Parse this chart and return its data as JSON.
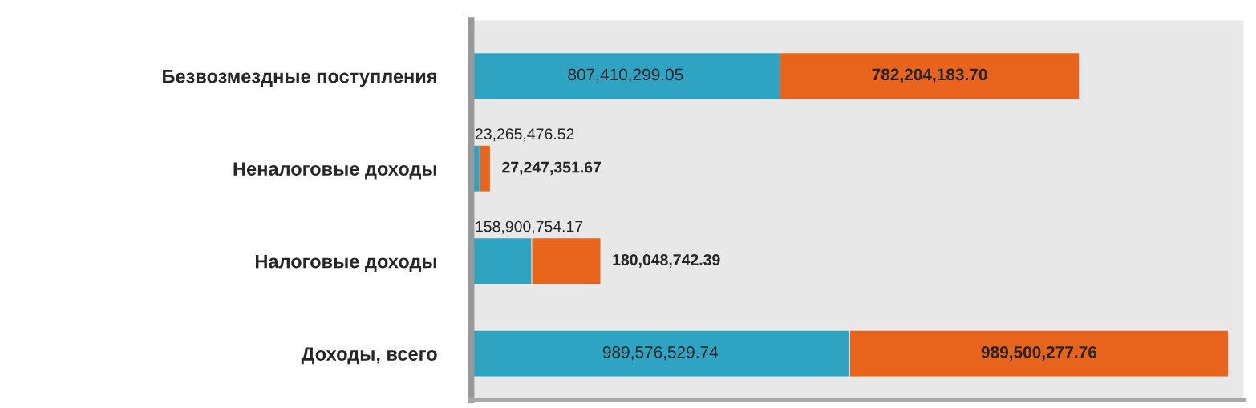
{
  "chart_data": {
    "type": "bar",
    "orientation": "horizontal",
    "stacked": true,
    "categories": [
      "Безвозмездные поступления",
      "Неналоговые доходы",
      "Налоговые доходы",
      "Доходы, всего"
    ],
    "series": [
      {
        "color": "#2ea3c2",
        "values": [
          807410299.05,
          23265476.52,
          158900754.17,
          989576529.74
        ],
        "value_labels": [
          "807,410,299.05",
          "23,265,476.52",
          "158,900,754.17",
          "989,576,529.74"
        ]
      },
      {
        "color": "#e8641c",
        "values": [
          782204183.7,
          27247351.67,
          180048742.39,
          989500277.76
        ],
        "value_labels": [
          "782,204,183.70",
          "27,247,351.67",
          "180,048,742.39",
          "989,500,277.76"
        ]
      }
    ],
    "grid": false,
    "legend": false
  }
}
